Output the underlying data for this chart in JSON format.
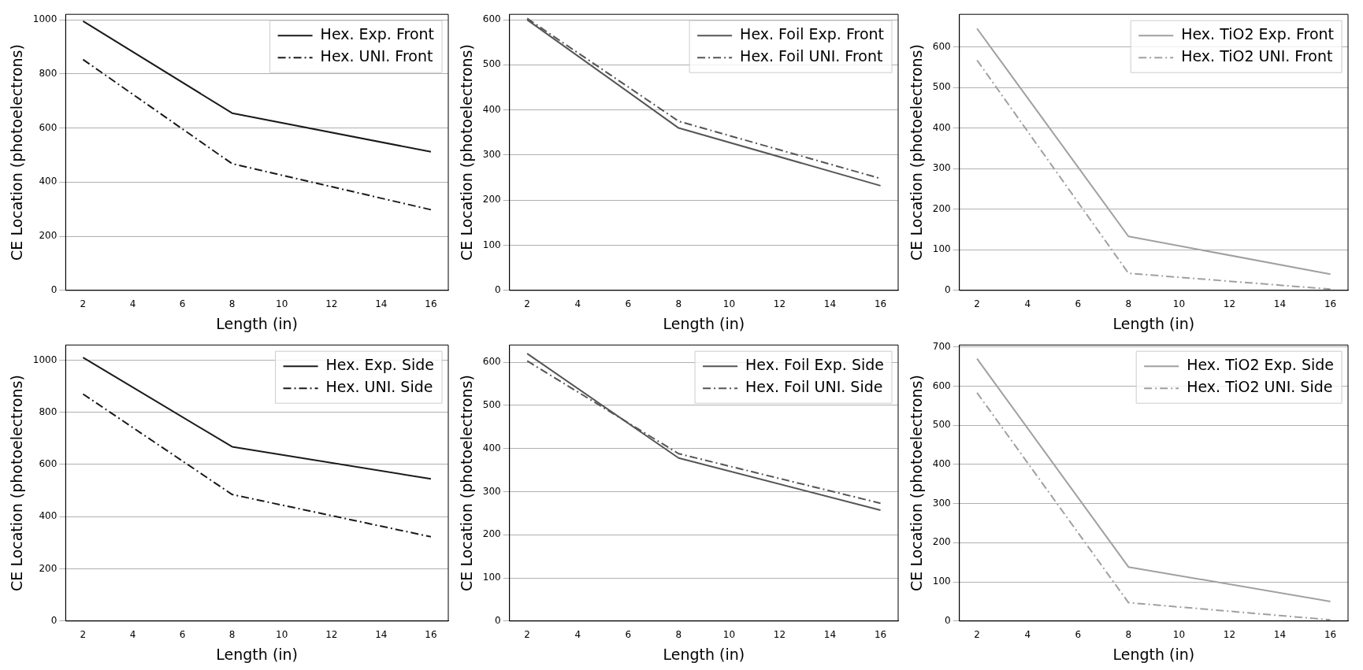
{
  "chart_data": [
    {
      "type": "line",
      "x": [
        2,
        8,
        16
      ],
      "xlabel": "Length (in)",
      "ylabel": "CE Location (photoelectrons)",
      "xlim": [
        1.3,
        16.7
      ],
      "xticks": [
        2,
        4,
        6,
        8,
        10,
        12,
        14,
        16
      ],
      "ylim": [
        0,
        1020
      ],
      "yticks": [
        0,
        200,
        400,
        600,
        800,
        1000
      ],
      "grid": "y",
      "legend": "top right",
      "series": [
        {
          "name": "Hex. Exp. Front",
          "color": "#1a1a1a",
          "values": [
            995,
            655,
            512
          ]
        },
        {
          "name": "Hex. UNI. Front",
          "color": "#1a1a1a",
          "values": [
            853,
            468,
            298
          ],
          "line_style": "dashed"
        }
      ]
    },
    {
      "type": "line",
      "x": [
        2,
        8,
        16
      ],
      "xlabel": "Length (in)",
      "ylabel": "CE Location (photoelectrons)",
      "xlim": [
        1.3,
        16.7
      ],
      "xticks": [
        2,
        4,
        6,
        8,
        10,
        12,
        14,
        16
      ],
      "ylim": [
        0,
        612
      ],
      "yticks": [
        0,
        100,
        200,
        300,
        400,
        500,
        600
      ],
      "grid": "y",
      "legend": "top right",
      "series": [
        {
          "name": "Hex. Foil Exp. Front",
          "color": "#555555",
          "values": [
            600,
            360,
            232
          ]
        },
        {
          "name": "Hex. Foil UNI. Front",
          "color": "#555555",
          "values": [
            603,
            375,
            248
          ],
          "line_style": "dashed"
        }
      ]
    },
    {
      "type": "line",
      "x": [
        2,
        8,
        16
      ],
      "xlabel": "Length (in)",
      "ylabel": "CE Location (photoelectrons)",
      "xlim": [
        1.3,
        16.7
      ],
      "xticks": [
        2,
        4,
        6,
        8,
        10,
        12,
        14,
        16
      ],
      "ylim": [
        0,
        680
      ],
      "yticks": [
        0,
        100,
        200,
        300,
        400,
        500,
        600
      ],
      "grid": "y",
      "legend": "top right",
      "series": [
        {
          "name": "Hex. TiO2 Exp. Front",
          "color": "#a0a0a0",
          "values": [
            645,
            133,
            40
          ]
        },
        {
          "name": "Hex. TiO2 UNI. Front",
          "color": "#a0a0a0",
          "values": [
            567,
            42,
            3
          ],
          "line_style": "dashed"
        }
      ]
    },
    {
      "type": "line",
      "x": [
        2,
        8,
        16
      ],
      "xlabel": "Length (in)",
      "ylabel": "CE Location (photoelectrons)",
      "xlim": [
        1.3,
        16.7
      ],
      "xticks": [
        2,
        4,
        6,
        8,
        10,
        12,
        14,
        16
      ],
      "ylim": [
        0,
        1058
      ],
      "yticks": [
        0,
        200,
        400,
        600,
        800,
        1000
      ],
      "grid": "y",
      "legend": "top right",
      "series": [
        {
          "name": "Hex. Exp. Side",
          "color": "#1a1a1a",
          "values": [
            1010,
            668,
            545
          ]
        },
        {
          "name": "Hex. UNI. Side",
          "color": "#1a1a1a",
          "values": [
            870,
            485,
            323
          ],
          "line_style": "dashed"
        }
      ]
    },
    {
      "type": "line",
      "x": [
        2,
        8,
        16
      ],
      "xlabel": "Length (in)",
      "ylabel": "CE Location (photoelectrons)",
      "xlim": [
        1.3,
        16.7
      ],
      "xticks": [
        2,
        4,
        6,
        8,
        10,
        12,
        14,
        16
      ],
      "ylim": [
        0,
        640
      ],
      "yticks": [
        0,
        100,
        200,
        300,
        400,
        500,
        600
      ],
      "grid": "y",
      "legend": "top right",
      "series": [
        {
          "name": "Hex. Foil Exp. Side",
          "color": "#555555",
          "values": [
            620,
            378,
            257
          ]
        },
        {
          "name": "Hex. Foil UNI. Side",
          "color": "#555555",
          "values": [
            603,
            388,
            273
          ],
          "line_style": "dashed"
        }
      ]
    },
    {
      "type": "line",
      "x": [
        2,
        8,
        16
      ],
      "xlabel": "Length (in)",
      "ylabel": "CE Location (photoelectrons)",
      "xlim": [
        1.3,
        16.7
      ],
      "xticks": [
        2,
        4,
        6,
        8,
        10,
        12,
        14,
        16
      ],
      "ylim": [
        0,
        705
      ],
      "yticks": [
        0,
        100,
        200,
        300,
        400,
        500,
        600,
        700
      ],
      "grid": "y",
      "legend": "top right",
      "series": [
        {
          "name": "Hex. TiO2 Exp. Side",
          "color": "#a0a0a0",
          "values": [
            670,
            138,
            50
          ]
        },
        {
          "name": "Hex. TiO2 UNI. Side",
          "color": "#a0a0a0",
          "values": [
            583,
            47,
            3
          ],
          "line_style": "dashed"
        }
      ]
    }
  ]
}
